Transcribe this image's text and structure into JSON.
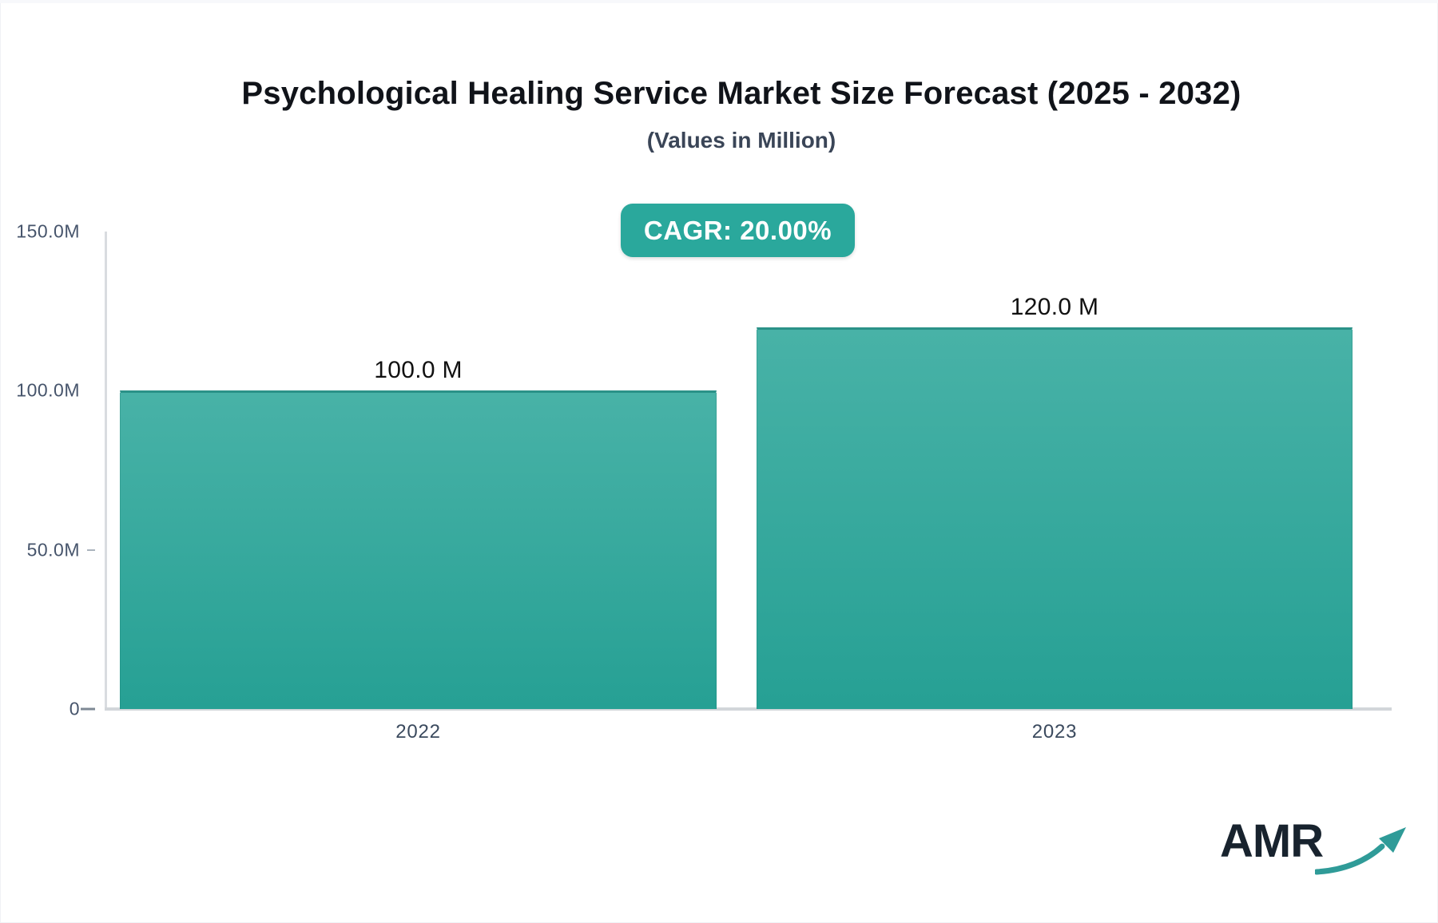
{
  "chart_data": {
    "type": "bar",
    "title": "Psychological Healing Service Market Size Forecast (2025 - 2032)",
    "subtitle": "(Values in Million)",
    "cagr_label": "CAGR: 20.00%",
    "unit": "Million",
    "categories": [
      "2022",
      "2023"
    ],
    "values": [
      100.0,
      120.0
    ],
    "bar_labels": [
      "100.0 M",
      "120.0 M"
    ],
    "ylim": [
      0,
      150
    ],
    "yticks": [
      {
        "label": "150.0M",
        "value": 150,
        "tick": false
      },
      {
        "label": "100.0M",
        "value": 100,
        "tick": false
      },
      {
        "label": "50.0M",
        "value": 50,
        "tick": true
      },
      {
        "label": "0",
        "value": 0,
        "tick": true
      }
    ],
    "grid": false,
    "legend": "none",
    "colors": {
      "bar_top": "#48b2a7",
      "bar_bottom": "#26a094",
      "bar_border": "#2b9288",
      "axis_line": "#d7dade",
      "tick_label": "#46546b",
      "data_label": "#111111",
      "badge": "#2aa89c"
    }
  },
  "logo": {
    "text": "AMR",
    "arrow_color": "#2f9b98"
  }
}
